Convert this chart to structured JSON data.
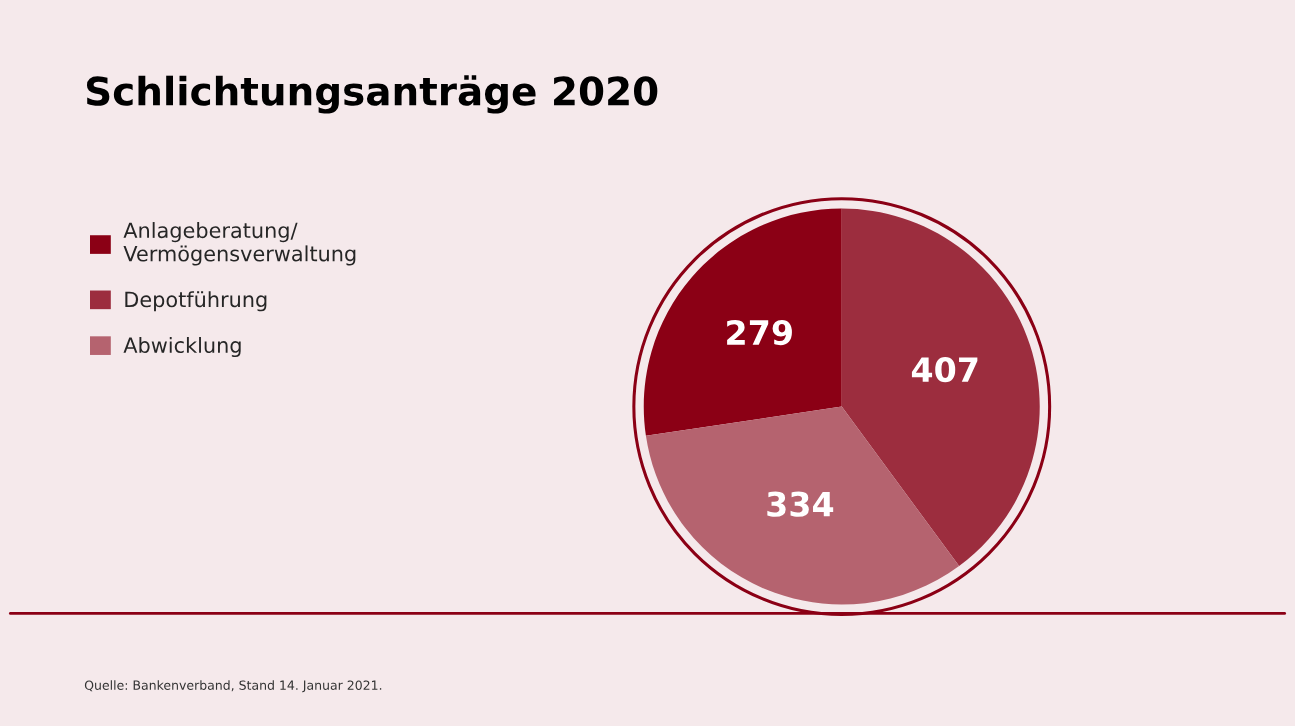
{
  "chart_data": {
    "type": "pie",
    "title": "Schlichtungsanträge 2020",
    "categories": [
      "Anlageberatung/\nVermögensverwaltung",
      "Depotführung",
      "Abwicklung"
    ],
    "values": [
      279,
      407,
      334
    ],
    "colors": [
      "#8b0015",
      "#9c2d3e",
      "#b5636f"
    ],
    "data_labels": true,
    "legend": "left",
    "annotations": [
      "Quelle: Bankenverband, Stand 14. Januar 2021."
    ]
  }
}
